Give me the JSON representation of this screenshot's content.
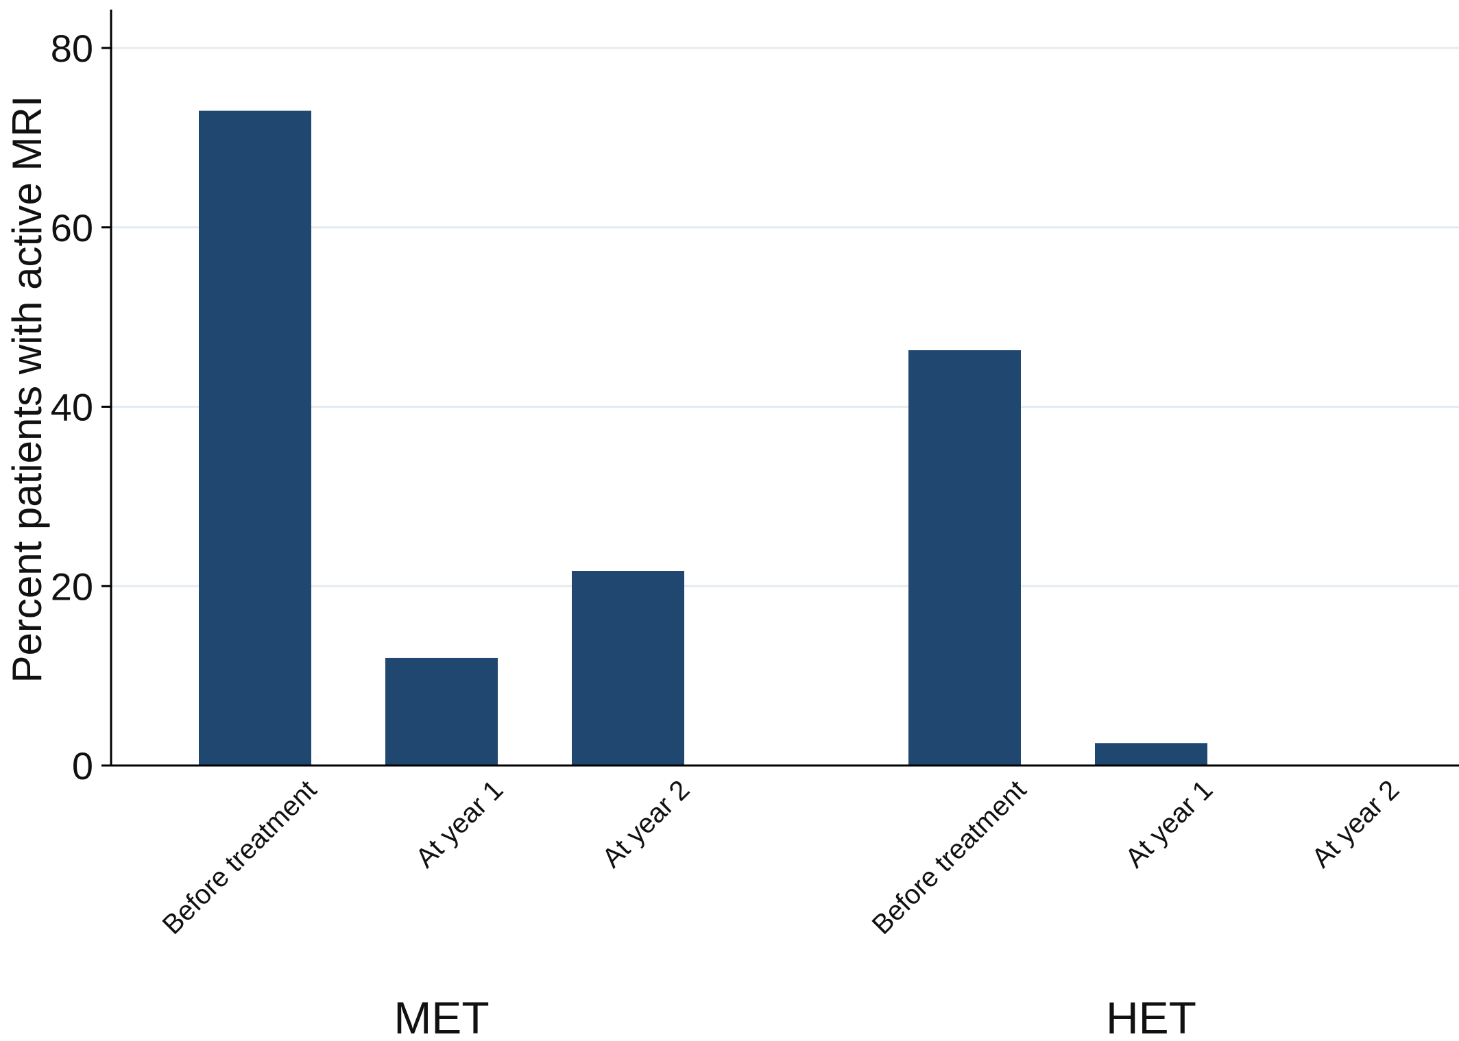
{
  "chart_data": {
    "type": "bar",
    "ylabel": "Percent patients with active MRI",
    "ylim": [
      0,
      80
    ],
    "yticks": [
      0,
      20,
      40,
      60,
      80
    ],
    "grid": true,
    "bar_color": "#1f4770",
    "grid_color": "#e4ecf2",
    "groups": [
      {
        "label": "MET",
        "categories": [
          "Before treatment",
          "At year 1",
          "At year 2"
        ],
        "values": [
          73,
          12,
          21.7
        ]
      },
      {
        "label": "HET",
        "categories": [
          "Before treatment",
          "At year 1",
          "At year 2"
        ],
        "values": [
          46.3,
          2.5,
          0
        ]
      }
    ]
  }
}
